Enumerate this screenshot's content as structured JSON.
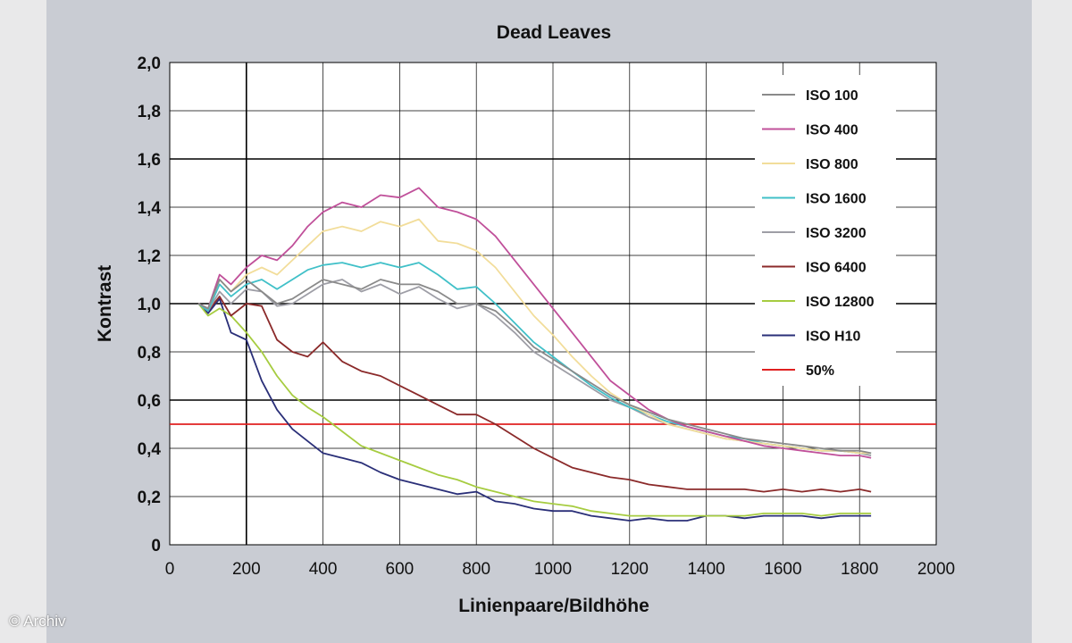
{
  "copyright": "© Archiv",
  "colors": {
    "background_panel": "#c9ccd3",
    "plot_bg": "#ffffff",
    "axis": "#000000",
    "threshold": "#e02020"
  },
  "chart_data": {
    "type": "line",
    "title": "Dead Leaves",
    "xlabel": "Linienpaare/Bildhöhe",
    "ylabel": "Kontrast",
    "xlim": [
      0,
      2000
    ],
    "ylim": [
      0,
      2.0
    ],
    "x_ticks": [
      "0",
      "200",
      "400",
      "600",
      "800",
      "1000",
      "1200",
      "1400",
      "1600",
      "1800",
      "2000"
    ],
    "y_ticks": [
      "0",
      "0,2",
      "0,4",
      "0,6",
      "0,8",
      "1,0",
      "1,2",
      "1,4",
      "1,6",
      "1,8",
      "2,0"
    ],
    "grid": true,
    "legend_position": "top-right",
    "x": [
      75,
      100,
      130,
      160,
      200,
      240,
      280,
      320,
      360,
      400,
      450,
      500,
      550,
      600,
      650,
      700,
      750,
      800,
      850,
      900,
      950,
      1000,
      1050,
      1100,
      1150,
      1200,
      1250,
      1300,
      1350,
      1400,
      1450,
      1500,
      1550,
      1600,
      1650,
      1700,
      1750,
      1800,
      1830
    ],
    "series": [
      {
        "name": "ISO 100",
        "color": "#8a8a8a",
        "values": [
          1.0,
          0.98,
          1.1,
          1.05,
          1.1,
          1.05,
          1.0,
          1.02,
          1.06,
          1.1,
          1.08,
          1.06,
          1.1,
          1.08,
          1.08,
          1.05,
          1.0,
          1.0,
          0.97,
          0.9,
          0.82,
          0.77,
          0.72,
          0.67,
          0.62,
          0.58,
          0.55,
          0.52,
          0.5,
          0.48,
          0.46,
          0.44,
          0.43,
          0.42,
          0.41,
          0.4,
          0.39,
          0.39,
          0.38
        ]
      },
      {
        "name": "ISO 400",
        "color": "#c0509a",
        "values": [
          1.0,
          0.98,
          1.12,
          1.08,
          1.15,
          1.2,
          1.18,
          1.24,
          1.32,
          1.38,
          1.42,
          1.4,
          1.45,
          1.44,
          1.48,
          1.4,
          1.38,
          1.35,
          1.28,
          1.18,
          1.08,
          0.98,
          0.88,
          0.78,
          0.68,
          0.62,
          0.56,
          0.52,
          0.49,
          0.47,
          0.45,
          0.43,
          0.41,
          0.4,
          0.39,
          0.38,
          0.37,
          0.37,
          0.36
        ]
      },
      {
        "name": "ISO 800",
        "color": "#f2dd9a",
        "values": [
          1.0,
          0.98,
          1.1,
          1.05,
          1.12,
          1.15,
          1.12,
          1.18,
          1.24,
          1.3,
          1.32,
          1.3,
          1.34,
          1.32,
          1.35,
          1.26,
          1.25,
          1.22,
          1.15,
          1.05,
          0.95,
          0.87,
          0.78,
          0.7,
          0.63,
          0.58,
          0.54,
          0.5,
          0.48,
          0.46,
          0.44,
          0.43,
          0.42,
          0.41,
          0.4,
          0.39,
          0.39,
          0.38,
          0.38
        ]
      },
      {
        "name": "ISO 1600",
        "color": "#40c0c8",
        "values": [
          1.0,
          0.97,
          1.08,
          1.03,
          1.08,
          1.1,
          1.06,
          1.1,
          1.14,
          1.16,
          1.17,
          1.15,
          1.17,
          1.15,
          1.17,
          1.12,
          1.06,
          1.07,
          1.0,
          0.92,
          0.84,
          0.78,
          0.72,
          0.66,
          0.61,
          0.57,
          0.54,
          0.51,
          0.49,
          0.47,
          0.45,
          0.44,
          0.42,
          0.41,
          0.4,
          0.39,
          0.39,
          0.38,
          0.38
        ]
      },
      {
        "name": "ISO 3200",
        "color": "#9e9ea6",
        "values": [
          1.0,
          0.97,
          1.05,
          1.0,
          1.06,
          1.05,
          0.99,
          1.0,
          1.04,
          1.08,
          1.1,
          1.05,
          1.08,
          1.04,
          1.07,
          1.02,
          0.98,
          1.0,
          0.95,
          0.88,
          0.8,
          0.75,
          0.7,
          0.65,
          0.6,
          0.57,
          0.53,
          0.5,
          0.48,
          0.46,
          0.44,
          0.43,
          0.42,
          0.41,
          0.4,
          0.39,
          0.39,
          0.38,
          0.37
        ]
      },
      {
        "name": "ISO 6400",
        "color": "#8b2a2a",
        "values": [
          1.0,
          0.97,
          1.03,
          0.95,
          1.0,
          0.99,
          0.85,
          0.8,
          0.78,
          0.84,
          0.76,
          0.72,
          0.7,
          0.66,
          0.62,
          0.58,
          0.54,
          0.54,
          0.5,
          0.45,
          0.4,
          0.36,
          0.32,
          0.3,
          0.28,
          0.27,
          0.25,
          0.24,
          0.23,
          0.23,
          0.23,
          0.23,
          0.22,
          0.23,
          0.22,
          0.23,
          0.22,
          0.23,
          0.22
        ]
      },
      {
        "name": "ISO 12800",
        "color": "#a6cc40",
        "values": [
          1.0,
          0.95,
          0.98,
          0.95,
          0.88,
          0.8,
          0.7,
          0.62,
          0.57,
          0.53,
          0.47,
          0.41,
          0.38,
          0.35,
          0.32,
          0.29,
          0.27,
          0.24,
          0.22,
          0.2,
          0.18,
          0.17,
          0.16,
          0.14,
          0.13,
          0.12,
          0.12,
          0.12,
          0.12,
          0.12,
          0.12,
          0.12,
          0.13,
          0.13,
          0.13,
          0.12,
          0.13,
          0.13,
          0.13
        ]
      },
      {
        "name": "ISO H10",
        "color": "#2a2f78",
        "values": [
          1.0,
          0.96,
          1.02,
          0.88,
          0.85,
          0.68,
          0.56,
          0.48,
          0.43,
          0.38,
          0.36,
          0.34,
          0.3,
          0.27,
          0.25,
          0.23,
          0.21,
          0.22,
          0.18,
          0.17,
          0.15,
          0.14,
          0.14,
          0.12,
          0.11,
          0.1,
          0.11,
          0.1,
          0.1,
          0.12,
          0.12,
          0.11,
          0.12,
          0.12,
          0.12,
          0.11,
          0.12,
          0.12,
          0.12
        ]
      },
      {
        "name": "50%",
        "color": "#e02020",
        "values": [
          0.5,
          0.5,
          0.5,
          0.5,
          0.5,
          0.5,
          0.5,
          0.5,
          0.5,
          0.5,
          0.5,
          0.5,
          0.5,
          0.5,
          0.5,
          0.5,
          0.5,
          0.5,
          0.5,
          0.5,
          0.5,
          0.5,
          0.5,
          0.5,
          0.5,
          0.5,
          0.5,
          0.5,
          0.5,
          0.5,
          0.5,
          0.5,
          0.5,
          0.5,
          0.5,
          0.5,
          0.5,
          0.5,
          0.5
        ]
      }
    ]
  }
}
